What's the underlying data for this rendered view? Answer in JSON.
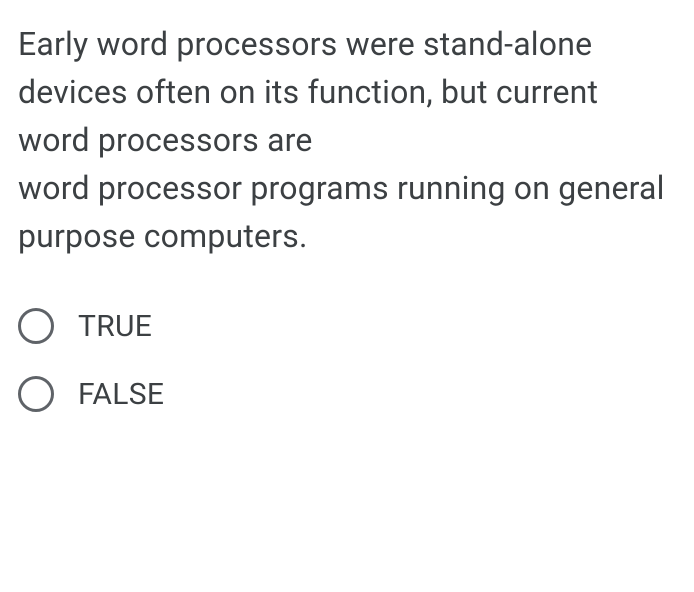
{
  "question": {
    "line1": "Early word processors were stand-alone",
    "line2": "devices often on its function, but current word processors are",
    "line3": "word processor programs running on general purpose computers."
  },
  "options": [
    {
      "label": "TRUE",
      "selected": false
    },
    {
      "label": "FALSE",
      "selected": false
    }
  ],
  "colors": {
    "text": "#3c4043",
    "radio_border": "#5f6368",
    "background": "#ffffff"
  }
}
